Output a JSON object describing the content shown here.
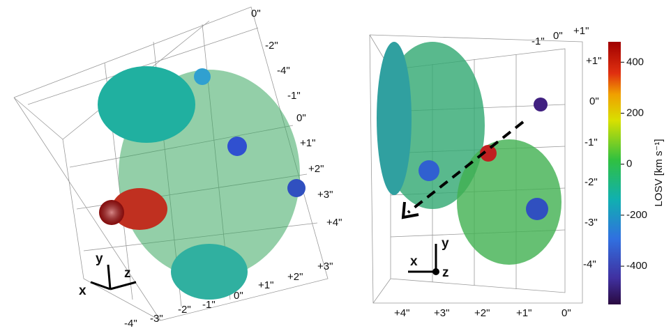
{
  "left_panel": {
    "labels": [
      "0\"",
      "-2\"",
      "-4\"",
      "-1\"",
      "0\"",
      "+1\"",
      "+2\"",
      "+3\"",
      "+4\"",
      "+3\"",
      "+2\"",
      "+1\"",
      "0\"",
      "-1\"",
      "-2\"",
      "-3\"",
      "-4\""
    ],
    "axes": [
      "x",
      "y",
      "z"
    ]
  },
  "right_panel": {
    "labels": [
      "-1\"",
      "0\"",
      "+1\"",
      "+1\"",
      "0\"",
      "-1\"",
      "-2\"",
      "-3\"",
      "-4\"",
      "+4\"",
      "+3\"",
      "+2\"",
      "+1\"",
      "0\""
    ],
    "axes": [
      "x",
      "y",
      "z"
    ]
  },
  "colorbar": {
    "label": "LOSV [km s⁻¹]",
    "lim": [
      -550,
      480
    ],
    "ticks": [
      400,
      200,
      0,
      -200,
      -400
    ]
  }
}
